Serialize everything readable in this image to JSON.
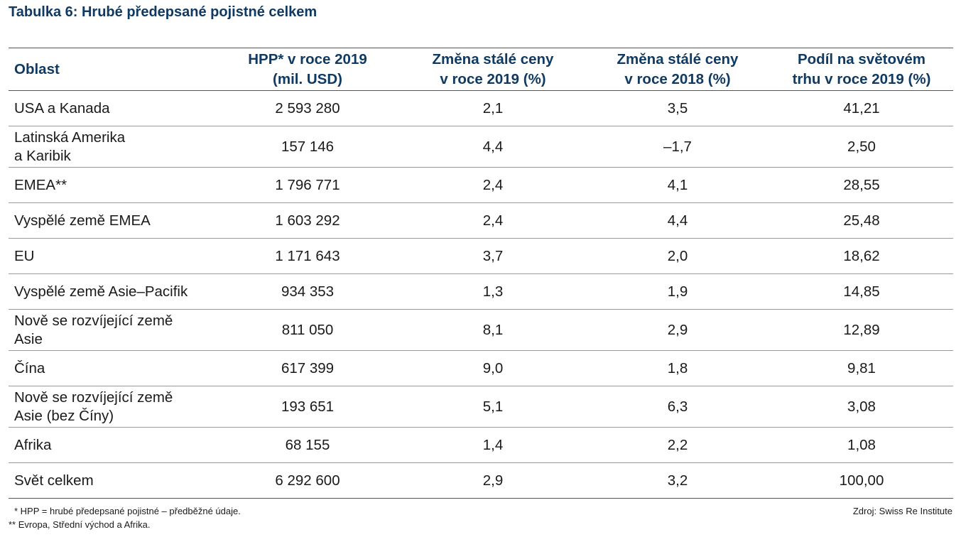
{
  "title": "Tabulka 6: Hrubé předepsané pojistné celkem",
  "table": {
    "headers": [
      "Oblast",
      "HPP* v roce 2019\n(mil. USD)",
      "Změna stálé ceny\nv roce 2019 (%)",
      "Změna stálé ceny\nv roce 2018 (%)",
      "Podíl na světovém\ntrhu v roce 2019 (%)"
    ],
    "rows": [
      [
        "USA a Kanada",
        "2 593 280",
        "2,1",
        "3,5",
        "41,21"
      ],
      [
        "Latinská Amerika\na Karibik",
        "157 146",
        "4,4",
        "–1,7",
        "2,50"
      ],
      [
        "EMEA**",
        "1 796 771",
        "2,4",
        "4,1",
        "28,55"
      ],
      [
        "Vyspělé země EMEA",
        "1 603 292",
        "2,4",
        "4,4",
        "25,48"
      ],
      [
        "EU",
        "1 171 643",
        "3,7",
        "2,0",
        "18,62"
      ],
      [
        "Vyspělé země Asie–Pacifik",
        "934 353",
        "1,3",
        "1,9",
        "14,85"
      ],
      [
        "Nově se rozvíjející země\nAsie",
        "811 050",
        "8,1",
        "2,9",
        "12,89"
      ],
      [
        "Čína",
        "617 399",
        "9,0",
        "1,8",
        "9,81"
      ],
      [
        "Nově se rozvíjející země\nAsie (bez Číny)",
        "193 651",
        "5,1",
        "6,3",
        "3,08"
      ],
      [
        "Afrika",
        "68 155",
        "1,4",
        "2,2",
        "1,08"
      ],
      [
        "Svět celkem",
        "6 292 600",
        "2,9",
        "3,2",
        "100,00"
      ]
    ]
  },
  "footnotes": {
    "note1": "* HPP = hrubé předepsané pojistné – předběžné údaje.",
    "note2": "** Evropa, Střední východ a Afrika.",
    "source": "Zdroj: Swiss Re Institute"
  },
  "colors": {
    "heading": "#0f3a63",
    "text": "#1a1a1a",
    "rule": "#9a9a9a"
  }
}
